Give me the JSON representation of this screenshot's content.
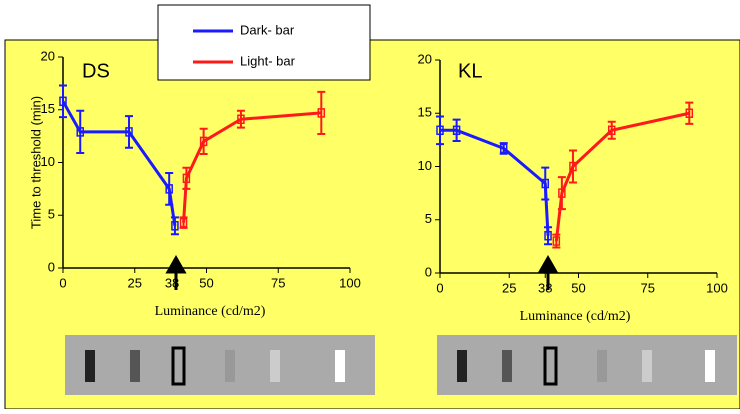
{
  "chart_data": [
    {
      "type": "line",
      "title": "DS",
      "xlabel": "Luminance (cd/m2)",
      "ylabel": "Time to threshold (min)",
      "xlim": [
        0,
        100
      ],
      "ylim": [
        0,
        20
      ],
      "xticks": [
        0,
        25,
        38,
        50,
        75,
        100
      ],
      "yticks": [
        0,
        5,
        10,
        15,
        20
      ],
      "series": [
        {
          "name": "Dark- bar",
          "color": "#1a1aff",
          "x": [
            0,
            6,
            23,
            37,
            39
          ],
          "values": [
            15.8,
            12.9,
            12.9,
            7.5,
            4
          ],
          "errors": [
            1.5,
            2,
            1.5,
            1.5,
            0.8
          ]
        },
        {
          "name": "Light- bar",
          "color": "#ff1a1a",
          "x": [
            42,
            43,
            49,
            62,
            90
          ],
          "values": [
            4.3,
            8.5,
            12,
            14.1,
            14.7
          ],
          "errors": [
            0.5,
            1,
            1.2,
            0.8,
            2
          ]
        }
      ]
    },
    {
      "type": "line",
      "title": "KL",
      "xlabel": "Luminance (cd/m2)",
      "xlim": [
        0,
        100
      ],
      "ylim": [
        0,
        20
      ],
      "xticks": [
        0,
        25,
        38,
        50,
        75,
        100
      ],
      "yticks": [
        0,
        5,
        10,
        15,
        20
      ],
      "series": [
        {
          "name": "Dark- bar",
          "color": "#1a1aff",
          "x": [
            0,
            6,
            23,
            38,
            39
          ],
          "values": [
            13.4,
            13.4,
            11.7,
            8.4,
            3.5
          ],
          "errors": [
            1.3,
            1,
            0.5,
            1.5,
            0.8
          ]
        },
        {
          "name": "Light- bar",
          "color": "#ff1a1a",
          "x": [
            42,
            44,
            48,
            62,
            90
          ],
          "values": [
            3,
            7.5,
            10,
            13.4,
            15
          ],
          "errors": [
            0.6,
            1.5,
            1.5,
            0.8,
            1
          ]
        }
      ]
    }
  ]
}
